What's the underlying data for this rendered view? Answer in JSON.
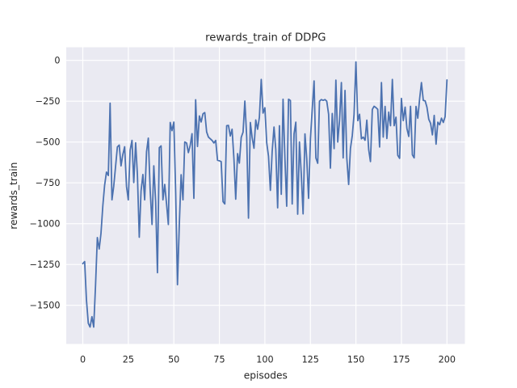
{
  "figure": {
    "title": "rewards_train of DDPG",
    "xlabel": "episodes",
    "ylabel": "rewards_train"
  },
  "style": {
    "figure_background": "#ffffff",
    "axes_background": "#eaeaf2",
    "grid_color": "#ffffff",
    "line_color": "#4c72b0",
    "text_color": "#262626"
  },
  "chart_data": {
    "type": "line",
    "title": "rewards_train of DDPG",
    "xlabel": "episodes",
    "ylabel": "rewards_train",
    "series_name": "rewards_train",
    "legend": "none",
    "grid": true,
    "xlim": [
      -9,
      210
    ],
    "ylim": [
      -1736,
      78
    ],
    "x_ticks": [
      {
        "v": 0,
        "label": "0"
      },
      {
        "v": 25,
        "label": "25"
      },
      {
        "v": 50,
        "label": "50"
      },
      {
        "v": 75,
        "label": "75"
      },
      {
        "v": 100,
        "label": "100"
      },
      {
        "v": 125,
        "label": "125"
      },
      {
        "v": 150,
        "label": "150"
      },
      {
        "v": 175,
        "label": "175"
      },
      {
        "v": 200,
        "label": "200"
      }
    ],
    "y_ticks": [
      {
        "v": 0,
        "label": "0"
      },
      {
        "v": -250,
        "label": "−250"
      },
      {
        "v": -500,
        "label": "−500"
      },
      {
        "v": -750,
        "label": "−750"
      },
      {
        "v": -1000,
        "label": "−1000"
      },
      {
        "v": -1250,
        "label": "−1250"
      },
      {
        "v": -1500,
        "label": "−1500"
      }
    ],
    "x_start": 0,
    "x_step": 1,
    "values": [
      -1245,
      -1232,
      -1466,
      -1610,
      -1633,
      -1570,
      -1633,
      -1374,
      -1085,
      -1155,
      -1060,
      -890,
      -765,
      -684,
      -705,
      -262,
      -854,
      -770,
      -648,
      -530,
      -519,
      -646,
      -575,
      -529,
      -772,
      -854,
      -550,
      -490,
      -748,
      -505,
      -700,
      -1083,
      -800,
      -699,
      -854,
      -560,
      -476,
      -795,
      -1005,
      -646,
      -869,
      -1300,
      -534,
      -524,
      -854,
      -760,
      -880,
      -1005,
      -380,
      -430,
      -378,
      -815,
      -1374,
      -1000,
      -700,
      -854,
      -500,
      -506,
      -565,
      -520,
      -449,
      -845,
      -241,
      -527,
      -340,
      -377,
      -327,
      -320,
      -438,
      -470,
      -480,
      -490,
      -506,
      -490,
      -612,
      -615,
      -620,
      -865,
      -879,
      -400,
      -398,
      -463,
      -422,
      -604,
      -850,
      -571,
      -629,
      -472,
      -439,
      -249,
      -470,
      -966,
      -380,
      -472,
      -538,
      -365,
      -422,
      -348,
      -117,
      -323,
      -290,
      -506,
      -587,
      -796,
      -560,
      -408,
      -545,
      -903,
      -400,
      -820,
      -238,
      -600,
      -893,
      -238,
      -246,
      -879,
      -450,
      -378,
      -942,
      -500,
      -700,
      -940,
      -450,
      -600,
      -845,
      -480,
      -300,
      -126,
      -597,
      -630,
      -250,
      -240,
      -245,
      -240,
      -250,
      -330,
      -660,
      -325,
      -540,
      -121,
      -500,
      -370,
      -136,
      -597,
      -184,
      -597,
      -760,
      -540,
      -460,
      -330,
      -10,
      -369,
      -330,
      -480,
      -470,
      -489,
      -366,
      -546,
      -620,
      -300,
      -281,
      -289,
      -300,
      -530,
      -136,
      -470,
      -282,
      -478,
      -317,
      -400,
      -117,
      -400,
      -348,
      -581,
      -600,
      -233,
      -369,
      -286,
      -417,
      -466,
      -281,
      -578,
      -597,
      -282,
      -354,
      -233,
      -136,
      -245,
      -248,
      -286,
      -361,
      -385,
      -456,
      -337,
      -513,
      -378,
      -394,
      -354,
      -380,
      -345,
      -120
    ]
  }
}
